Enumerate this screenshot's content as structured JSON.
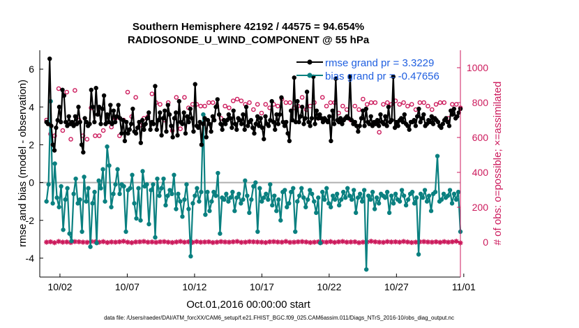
{
  "chart_data": {
    "type": "line",
    "title": "Southern Hemisphere 42192 / 44575 = 94.654%",
    "subtitle": "RADIOSONDE_U_WIND_COMPONENT @ 55 hPa",
    "xlabel": "Oct.01,2016 00:00:00 start",
    "ylabel": "rmse and bias (model - observation)",
    "ylabel_right": "# of obs: o=possible; ×=assimilated",
    "footnote": "data file: /Users/raeder/DAI/ATM_forcXX/CAM6_setup/f.e21.FHIST_BGC.f09_025.CAM6assim.011/Diags_NTrS_2016-10/obs_diag_output.nc",
    "xlim": [
      0.5,
      31.75
    ],
    "ylim": [
      -5,
      7
    ],
    "ylim_right": [
      -200,
      1100
    ],
    "x_ticks": [
      {
        "value": 2,
        "label": "10/02"
      },
      {
        "value": 7,
        "label": "10/07"
      },
      {
        "value": 12,
        "label": "10/12"
      },
      {
        "value": 17,
        "label": "10/17"
      },
      {
        "value": 22,
        "label": "10/22"
      },
      {
        "value": 27,
        "label": "10/27"
      },
      {
        "value": 32,
        "label": "11/01"
      }
    ],
    "y_ticks": [
      -4,
      -2,
      0,
      2,
      4,
      6
    ],
    "y_ticks_right": [
      0,
      200,
      400,
      600,
      800,
      1000
    ],
    "legend_position": "top-right",
    "colors": {
      "rmse": "#000000",
      "bias": "#0a8080",
      "obs": "#cc1a5c",
      "zero": "#b0b0b0",
      "legend_text": "#1f5fe0"
    },
    "series": [
      {
        "name": "rmse grand pr = 3.3229",
        "axis": "left",
        "values": [
          3.2,
          3.1,
          6.55,
          3.0,
          2.0,
          1.7,
          2.9,
          3.3,
          4.0,
          3.2,
          4.9,
          4.6,
          3.2,
          3.0,
          3.5,
          3.1,
          3.2,
          3.0,
          3.5,
          3.1,
          4.0,
          3.2,
          2.0,
          1.6,
          3.4,
          3.2,
          3.0,
          3.1,
          4.9,
          4.0,
          3.2,
          5.0,
          3.6,
          4.0,
          3.1,
          3.9,
          4.6,
          3.1,
          3.6,
          3.2,
          4.1,
          3.1,
          3.8,
          3.2,
          3.5,
          4.1,
          3.4,
          2.6,
          3.3,
          2.2,
          3.2,
          2.6,
          2.8,
          3.1,
          3.9,
          2.7,
          2.6,
          2.9,
          3.2,
          2.1,
          3.3,
          2.8,
          3.1,
          3.4,
          3.7,
          2.8,
          3.2,
          3.1,
          5.1,
          2.8,
          3.3,
          3.7,
          2.5,
          3.4,
          3.8,
          2.7,
          4.1,
          3.6,
          3.0,
          2.4,
          3.4,
          3.7,
          2.5,
          4.3,
          3.2,
          3.1,
          3.7,
          2.6,
          3.5,
          3.2,
          3.9,
          3.4,
          2.7,
          5.2,
          3.0,
          2.9,
          3.2,
          2.0,
          3.1,
          3.4,
          2.4,
          3.3,
          3.1,
          2.7,
          3.5,
          3.3,
          4.0,
          4.4,
          3.6,
          3.1,
          2.8,
          3.3,
          3.1,
          3.3,
          3.6,
          3.4,
          2.9,
          3.8,
          3.1,
          2.8,
          3.4,
          3.3,
          3.1,
          3.6,
          2.8,
          4.0,
          3.0,
          3.2,
          3.3,
          2.9,
          2.6,
          3.1,
          3.5,
          3.0,
          3.4,
          2.9,
          2.3,
          3.5,
          3.1,
          3.0,
          3.3,
          4.3,
          3.2,
          2.8,
          3.6,
          3.1,
          3.6,
          4.5,
          3.2,
          3.0,
          3.2,
          2.6,
          2.2,
          3.8,
          3.3,
          5.55,
          3.2,
          4.3,
          3.2,
          3.5,
          4.0,
          3.1,
          3.4,
          4.8,
          3.2,
          3.0,
          3.4,
          5.6,
          3.1,
          3.8,
          3.4,
          3.6,
          3.4,
          3.2,
          3.4,
          3.3,
          3.2,
          3.5,
          2.2,
          3.8,
          3.1,
          5.5,
          3.3,
          3.2,
          3.4,
          3.1,
          3.3,
          3.4,
          3.5,
          3.4,
          5.6,
          3.3,
          3.1,
          3.2,
          3.0,
          2.7,
          3.0,
          3.4,
          3.8,
          3.0,
          3.9,
          3.2,
          3.1,
          3.5,
          3.0,
          3.2,
          3.1,
          3.3,
          3.0,
          3.6,
          3.2,
          3.1,
          3.5,
          3.0,
          4.0,
          3.2,
          3.3,
          5.6,
          2.9,
          3.2,
          3.0,
          3.3,
          3.4,
          3.2,
          3.6,
          3.1,
          3.0,
          2.8,
          3.2,
          3.2,
          3.3,
          3.0,
          3.5,
          3.9,
          3.2,
          3.4,
          3.6,
          3.0,
          3.1,
          3.3,
          3.2,
          3.5,
          3.1,
          3.4,
          3.3,
          3.2,
          3.0,
          2.9,
          3.1,
          3.3,
          3.4,
          3.2,
          3.0,
          3.8,
          3.6,
          3.9,
          3.4,
          3.5,
          3.7,
          3.9
        ]
      },
      {
        "name": "bias grand pr = -0.47656",
        "axis": "left",
        "values": [
          -1.0,
          -0.1,
          4.3,
          -1.1,
          1.0,
          -0.8,
          -1.3,
          -0.2,
          -2.5,
          -0.9,
          -0.3,
          -2.7,
          -3.1,
          -0.6,
          0.2,
          -1.1,
          -0.9,
          -2.6,
          0.3,
          -1.0,
          -0.3,
          -3.4,
          -1.1,
          -0.5,
          -3.2,
          0.1,
          -0.3,
          0.7,
          -1.0,
          1.9,
          0.9,
          -1.3,
          -0.6,
          -0.1,
          0.7,
          -0.6,
          -0.1,
          -0.2,
          -2.6,
          -0.4,
          -0.3,
          0.4,
          -1.1,
          -1.9,
          -0.3,
          -2.0,
          0.6,
          -0.2,
          -0.1,
          -2.2,
          -0.4,
          -0.1,
          -2.9,
          0.2,
          -0.7,
          -0.3,
          0.2,
          -1.2,
          -0.7,
          -0.4,
          -0.6,
          0.4,
          -1.4,
          -0.6,
          -1.0,
          -1.8,
          -0.9,
          -0.1,
          -1.4,
          -3.9,
          -1.1,
          -0.7,
          -0.3,
          -1.0,
          -0.5,
          3.6,
          -1.7,
          -0.5,
          -1.5,
          -1.0,
          -0.5,
          -0.7,
          0.5,
          -2.7,
          -0.8,
          -0.9,
          -0.6,
          -1.0,
          -0.8,
          -0.5,
          -1.5,
          -0.8,
          -0.6,
          -1.1,
          -0.9,
          0.1,
          -0.7,
          -1.6,
          -0.9,
          -0.2,
          0.0,
          -2.6,
          -0.3,
          -1.0,
          -0.8,
          -0.6,
          -0.9,
          -0.1,
          -1.2,
          -0.7,
          -1.5,
          -0.9,
          -2.0,
          -0.5,
          -0.4,
          -1.3,
          -1.1,
          -0.5,
          -0.3,
          -2.6,
          -1.0,
          -0.7,
          -0.3,
          -0.8,
          -1.3,
          -0.9,
          -0.4,
          -0.6,
          -1.0,
          -1.6,
          -0.8,
          -3.2,
          -0.5,
          -0.9,
          -0.3,
          -1.1,
          -1.3,
          -0.7,
          -0.9,
          -0.6,
          -1.2,
          -0.9,
          -0.5,
          -0.8,
          -0.3,
          -0.7,
          -0.9,
          -0.4,
          -1.6,
          -0.8,
          -0.6,
          -1.0,
          -0.4,
          -4.6,
          -0.7,
          -0.9,
          -0.5,
          -1.4,
          -0.8,
          -1.1,
          -0.6,
          -0.7,
          -0.8,
          -0.5,
          -1.6,
          -0.7,
          -1.1,
          -0.6,
          -0.9,
          -1.0,
          -0.4,
          -0.7,
          -1.2,
          -0.9,
          -0.6,
          -0.5,
          -1.1,
          -0.8,
          -3.8,
          -0.6,
          -0.8,
          -0.4,
          -1.0,
          -0.7,
          -1.5,
          -0.6,
          -0.5,
          1.4,
          -1.0,
          -0.9,
          -0.6,
          -0.8,
          -0.7,
          -0.4,
          -1.1,
          -0.6,
          -0.9,
          -0.5,
          -2.6
        ]
      },
      {
        "name": "# of obs possible",
        "axis": "right",
        "marker": "o",
        "values": [
          700,
          620,
          610,
          880,
          640,
          860,
          590,
          870,
          700,
          610,
          590,
          770,
          610,
          610,
          640,
          700,
          660,
          710,
          610,
          700,
          860,
          720,
          830,
          670,
          710,
          720,
          850,
          800,
          790,
          700,
          800,
          640,
          830,
          650,
          830,
          770,
          790,
          790,
          780,
          780,
          800,
          800,
          780,
          710,
          780,
          770,
          810,
          820,
          810,
          790,
          800,
          760,
          790,
          740,
          790,
          770,
          790,
          780,
          820,
          800,
          800,
          770,
          780,
          830,
          760,
          780,
          800,
          710,
          830,
          780,
          800,
          800,
          740,
          780,
          760,
          700,
          780,
          760,
          820,
          790,
          800,
          800,
          630,
          790,
          800,
          790,
          810,
          790,
          800,
          780,
          790,
          760,
          800,
          800,
          780,
          760,
          790,
          800,
          800,
          710,
          790,
          790,
          770
        ]
      },
      {
        "name": "# of obs assimilated",
        "axis": "right",
        "marker": "*",
        "values": [
          0,
          2,
          -3,
          4,
          0,
          1,
          -2,
          3,
          2,
          0,
          -1,
          4,
          2,
          0,
          3,
          -2,
          1,
          0,
          2,
          5,
          0,
          -3,
          1,
          2,
          4,
          0,
          1,
          -1,
          2,
          3,
          0,
          -2,
          1,
          4,
          0,
          2,
          -1,
          3,
          0,
          1,
          2,
          -2,
          0,
          3,
          1,
          0,
          2,
          4,
          -1,
          0,
          3,
          2,
          1,
          0,
          -2,
          2,
          3,
          1,
          0,
          4,
          -1,
          0,
          2,
          3,
          1,
          -2,
          0,
          2,
          1,
          0,
          3,
          -1,
          2,
          4,
          0,
          1,
          2,
          -3,
          0,
          1,
          5,
          2,
          0,
          -1,
          3,
          1,
          2,
          0,
          4,
          1,
          -2,
          0,
          2,
          3,
          1,
          0,
          2,
          -1,
          3,
          0,
          2,
          5,
          -4
        ]
      }
    ]
  }
}
